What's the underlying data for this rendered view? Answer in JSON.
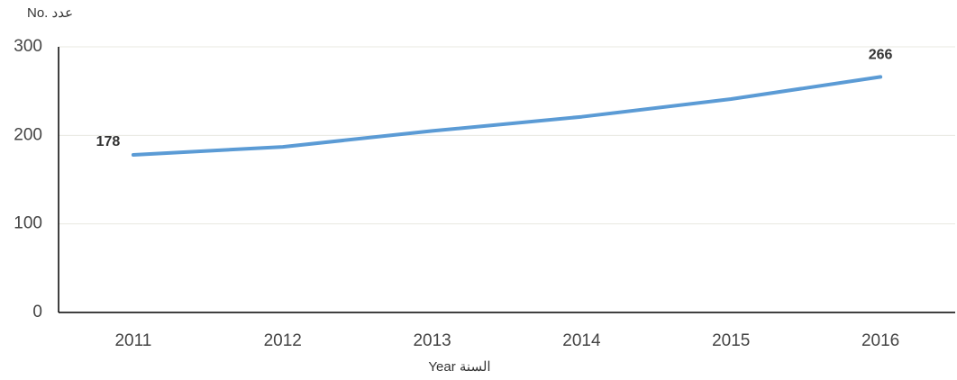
{
  "chart_data": {
    "type": "line",
    "ylabel": "No. عدد",
    "xlabel": "Year السنة",
    "categories": [
      "2011",
      "2012",
      "2013",
      "2014",
      "2015",
      "2016"
    ],
    "series": [
      {
        "name": "No.",
        "color": "#5b9bd5",
        "values": [
          178,
          187,
          205,
          221,
          241,
          266
        ],
        "value_labels": [
          "178",
          null,
          null,
          null,
          null,
          "266"
        ]
      }
    ],
    "ylim": [
      0,
      300
    ],
    "yticks": [
      0,
      100,
      200,
      300
    ],
    "grid": true
  }
}
